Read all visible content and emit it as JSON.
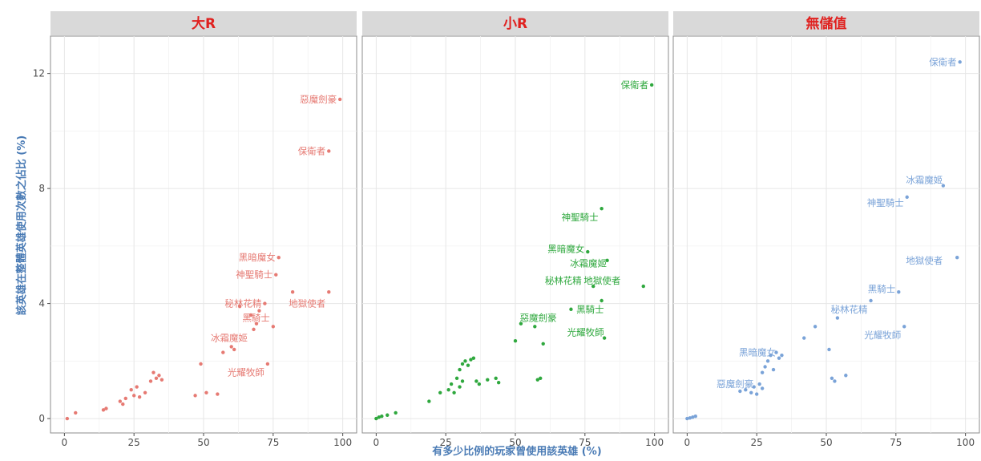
{
  "chart_data": {
    "type": "scatter",
    "xlabel": "有多少比例的玩家曾使用該英雄 (%)",
    "ylabel": "該英雄在整體英雄使用次數之佔比 (%)",
    "xlim": [
      -5,
      105
    ],
    "ylim": [
      -0.5,
      13.3
    ],
    "x_ticks": [
      0,
      25,
      50,
      75,
      100
    ],
    "y_ticks": [
      0,
      4,
      8,
      12
    ],
    "grid": true,
    "strip_color": "#d9d9d9",
    "strip_text_color": "#e0211f",
    "axis_text_color": "#4a7bb5",
    "panels": [
      {
        "name": "大R",
        "color": "#e67a73",
        "points": [
          {
            "x": 1,
            "y": 0.0
          },
          {
            "x": 4,
            "y": 0.2
          },
          {
            "x": 14,
            "y": 0.3
          },
          {
            "x": 15,
            "y": 0.35
          },
          {
            "x": 20,
            "y": 0.6
          },
          {
            "x": 21,
            "y": 0.5
          },
          {
            "x": 22,
            "y": 0.7
          },
          {
            "x": 24,
            "y": 1.0
          },
          {
            "x": 25,
            "y": 0.8
          },
          {
            "x": 26,
            "y": 1.1
          },
          {
            "x": 27,
            "y": 0.75
          },
          {
            "x": 29,
            "y": 0.9
          },
          {
            "x": 31,
            "y": 1.3
          },
          {
            "x": 32,
            "y": 1.6
          },
          {
            "x": 33,
            "y": 1.4
          },
          {
            "x": 34,
            "y": 1.5
          },
          {
            "x": 35,
            "y": 1.35
          },
          {
            "x": 47,
            "y": 0.8
          },
          {
            "x": 49,
            "y": 1.9
          },
          {
            "x": 51,
            "y": 0.9
          },
          {
            "x": 55,
            "y": 0.85
          },
          {
            "x": 57,
            "y": 2.3
          },
          {
            "x": 60,
            "y": 2.5
          },
          {
            "x": 61,
            "y": 2.4
          },
          {
            "x": 63,
            "y": 3.9
          },
          {
            "x": 67,
            "y": 3.6
          },
          {
            "x": 68,
            "y": 3.1
          },
          {
            "x": 69,
            "y": 3.3
          },
          {
            "x": 70,
            "y": 3.75
          },
          {
            "x": 72,
            "y": 4.0
          },
          {
            "x": 73,
            "y": 1.9
          },
          {
            "x": 75,
            "y": 3.2
          },
          {
            "x": 76,
            "y": 5.0
          },
          {
            "x": 77,
            "y": 5.6
          },
          {
            "x": 82,
            "y": 4.4
          },
          {
            "x": 95,
            "y": 4.4
          },
          {
            "x": 95,
            "y": 9.3
          },
          {
            "x": 99,
            "y": 11.1
          }
        ],
        "labels": [
          {
            "text": "惡魔劍豪",
            "x": 99,
            "y": 11.1
          },
          {
            "text": "保衛者",
            "x": 95,
            "y": 9.3
          },
          {
            "text": "黑暗魔女",
            "x": 77,
            "y": 5.6
          },
          {
            "text": "神聖騎士",
            "x": 76,
            "y": 5.0
          },
          {
            "text": "秘林花精",
            "x": 72,
            "y": 4.0
          },
          {
            "text": "地獄使者",
            "x": 95,
            "y": 4.0
          },
          {
            "text": "黑騎士",
            "x": 75,
            "y": 3.5
          },
          {
            "text": "冰霜魔姬",
            "x": 67,
            "y": 2.8
          },
          {
            "text": "光耀牧師",
            "x": 73,
            "y": 1.6
          }
        ]
      },
      {
        "name": "小R",
        "color": "#2fa83e",
        "points": [
          {
            "x": 0,
            "y": 0.0
          },
          {
            "x": 1,
            "y": 0.05
          },
          {
            "x": 2,
            "y": 0.08
          },
          {
            "x": 4,
            "y": 0.12
          },
          {
            "x": 7,
            "y": 0.2
          },
          {
            "x": 19,
            "y": 0.6
          },
          {
            "x": 23,
            "y": 0.9
          },
          {
            "x": 26,
            "y": 1.0
          },
          {
            "x": 27,
            "y": 1.2
          },
          {
            "x": 28,
            "y": 0.9
          },
          {
            "x": 29,
            "y": 1.4
          },
          {
            "x": 30,
            "y": 1.1
          },
          {
            "x": 31,
            "y": 1.3
          },
          {
            "x": 30,
            "y": 1.7
          },
          {
            "x": 31,
            "y": 1.9
          },
          {
            "x": 32,
            "y": 2.0
          },
          {
            "x": 33,
            "y": 1.85
          },
          {
            "x": 34,
            "y": 2.05
          },
          {
            "x": 35,
            "y": 2.1
          },
          {
            "x": 36,
            "y": 1.3
          },
          {
            "x": 37,
            "y": 1.2
          },
          {
            "x": 40,
            "y": 1.35
          },
          {
            "x": 43,
            "y": 1.4
          },
          {
            "x": 44,
            "y": 1.25
          },
          {
            "x": 50,
            "y": 2.7
          },
          {
            "x": 52,
            "y": 3.3
          },
          {
            "x": 57,
            "y": 3.2
          },
          {
            "x": 58,
            "y": 1.35
          },
          {
            "x": 59,
            "y": 1.4
          },
          {
            "x": 60,
            "y": 2.6
          },
          {
            "x": 70,
            "y": 3.8
          },
          {
            "x": 76,
            "y": 5.8
          },
          {
            "x": 78,
            "y": 4.6
          },
          {
            "x": 81,
            "y": 4.1
          },
          {
            "x": 81,
            "y": 7.3
          },
          {
            "x": 82,
            "y": 2.8
          },
          {
            "x": 83,
            "y": 5.5
          },
          {
            "x": 96,
            "y": 4.6
          },
          {
            "x": 99,
            "y": 11.6
          }
        ],
        "labels": [
          {
            "text": "保衛者",
            "x": 99,
            "y": 11.6
          },
          {
            "text": "神聖騎士",
            "x": 81,
            "y": 7.0
          },
          {
            "text": "黑暗魔女",
            "x": 76,
            "y": 5.9
          },
          {
            "text": "冰霜魔姬",
            "x": 84,
            "y": 5.4
          },
          {
            "text": "秘林花精",
            "x": 75,
            "y": 4.8
          },
          {
            "text": "地獄使者",
            "x": 89,
            "y": 4.8
          },
          {
            "text": "黑騎士",
            "x": 83,
            "y": 3.8
          },
          {
            "text": "惡魔劍豪",
            "x": 66,
            "y": 3.5
          },
          {
            "text": "光耀牧師",
            "x": 83,
            "y": 3.0
          }
        ]
      },
      {
        "name": "無儲值",
        "color": "#7aa3d8",
        "points": [
          {
            "x": 0,
            "y": 0.0
          },
          {
            "x": 1,
            "y": 0.02
          },
          {
            "x": 2,
            "y": 0.05
          },
          {
            "x": 3,
            "y": 0.08
          },
          {
            "x": 19,
            "y": 0.95
          },
          {
            "x": 21,
            "y": 1.0
          },
          {
            "x": 23,
            "y": 0.9
          },
          {
            "x": 24,
            "y": 1.1
          },
          {
            "x": 25,
            "y": 0.85
          },
          {
            "x": 26,
            "y": 1.2
          },
          {
            "x": 27,
            "y": 1.05
          },
          {
            "x": 27,
            "y": 1.6
          },
          {
            "x": 28,
            "y": 1.8
          },
          {
            "x": 29,
            "y": 2.0
          },
          {
            "x": 30,
            "y": 2.2
          },
          {
            "x": 31,
            "y": 1.7
          },
          {
            "x": 32,
            "y": 2.3
          },
          {
            "x": 33,
            "y": 2.1
          },
          {
            "x": 34,
            "y": 2.2
          },
          {
            "x": 42,
            "y": 2.8
          },
          {
            "x": 46,
            "y": 3.2
          },
          {
            "x": 51,
            "y": 2.4
          },
          {
            "x": 52,
            "y": 1.4
          },
          {
            "x": 53,
            "y": 1.3
          },
          {
            "x": 54,
            "y": 3.5
          },
          {
            "x": 57,
            "y": 1.5
          },
          {
            "x": 66,
            "y": 4.1
          },
          {
            "x": 76,
            "y": 4.4
          },
          {
            "x": 78,
            "y": 3.2
          },
          {
            "x": 79,
            "y": 7.7
          },
          {
            "x": 92,
            "y": 8.1
          },
          {
            "x": 97,
            "y": 5.6
          },
          {
            "x": 98,
            "y": 12.4
          }
        ],
        "labels": [
          {
            "text": "保衛者",
            "x": 98,
            "y": 12.4
          },
          {
            "text": "冰霜魔姬",
            "x": 93,
            "y": 8.3
          },
          {
            "text": "神聖騎士",
            "x": 79,
            "y": 7.5
          },
          {
            "text": "地獄使者",
            "x": 93,
            "y": 5.5
          },
          {
            "text": "黑騎士",
            "x": 76,
            "y": 4.5
          },
          {
            "text": "秘林花精",
            "x": 66,
            "y": 3.8
          },
          {
            "text": "光耀牧師",
            "x": 78,
            "y": 2.9
          },
          {
            "text": "黑暗魔女",
            "x": 33,
            "y": 2.3
          },
          {
            "text": "惡魔劍豪",
            "x": 25,
            "y": 1.2
          }
        ]
      }
    ]
  }
}
